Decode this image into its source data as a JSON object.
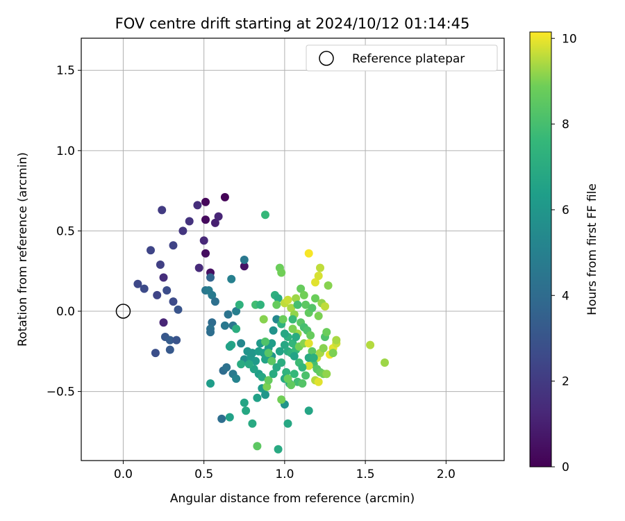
{
  "chart_data": {
    "type": "scatter",
    "title": "FOV centre drift starting at 2024/10/12 01:14:45",
    "xlabel": "Angular distance from reference (arcmin)",
    "ylabel": "Rotation from reference (arcmin)",
    "xlim": [
      -0.26,
      2.36
    ],
    "ylim": [
      -0.93,
      1.7
    ],
    "xticks": [
      0.0,
      0.5,
      1.0,
      1.5,
      2.0
    ],
    "xtick_labels": [
      "0.0",
      "0.5",
      "1.0",
      "1.5",
      "2.0"
    ],
    "yticks": [
      -0.5,
      0.0,
      0.5,
      1.0,
      1.5
    ],
    "ytick_labels": [
      "−0.5",
      "0.0",
      "0.5",
      "1.0",
      "1.5"
    ],
    "grid": true,
    "legend": {
      "placement": "top-right",
      "entries": [
        "Reference platepar"
      ]
    },
    "reference_point": {
      "x": 0.0,
      "y": 0.0,
      "label": "Reference platepar"
    },
    "colorbar": {
      "label": "Hours from first FF file",
      "range": [
        0,
        10.15
      ],
      "ticks": [
        0,
        2,
        4,
        6,
        8,
        10
      ],
      "tick_labels": [
        "0",
        "2",
        "4",
        "6",
        "8",
        "10"
      ],
      "colormap": "viridis"
    },
    "points": [
      [
        0.63,
        0.71,
        0.1
      ],
      [
        0.51,
        0.68,
        0.2
      ],
      [
        0.51,
        0.57,
        0.3
      ],
      [
        0.51,
        0.36,
        0.4
      ],
      [
        0.54,
        0.24,
        0.5
      ],
      [
        0.75,
        0.28,
        0.6
      ],
      [
        0.57,
        0.55,
        1.0
      ],
      [
        0.59,
        0.59,
        1.2
      ],
      [
        0.46,
        0.66,
        1.5
      ],
      [
        0.5,
        0.44,
        1.3
      ],
      [
        0.47,
        0.27,
        1.4
      ],
      [
        0.25,
        0.21,
        1.5
      ],
      [
        0.25,
        -0.07,
        1.2
      ],
      [
        0.24,
        0.63,
        2.0
      ],
      [
        0.41,
        0.56,
        1.7
      ],
      [
        0.37,
        0.5,
        1.8
      ],
      [
        0.31,
        0.41,
        2.3
      ],
      [
        0.17,
        0.38,
        2.4
      ],
      [
        0.23,
        0.29,
        2.2
      ],
      [
        0.09,
        0.17,
        2.5
      ],
      [
        0.13,
        0.14,
        2.6
      ],
      [
        0.21,
        0.1,
        2.4
      ],
      [
        0.27,
        0.13,
        2.7
      ],
      [
        0.31,
        0.06,
        2.6
      ],
      [
        0.34,
        0.01,
        3.0
      ],
      [
        0.26,
        -0.16,
        3.1
      ],
      [
        0.29,
        -0.18,
        3.3
      ],
      [
        0.33,
        -0.18,
        3.0
      ],
      [
        0.2,
        -0.26,
        2.8
      ],
      [
        0.29,
        -0.24,
        3.2
      ],
      [
        0.51,
        0.13,
        4.5
      ],
      [
        0.53,
        0.13,
        4.8
      ],
      [
        0.55,
        0.1,
        4.7
      ],
      [
        0.57,
        0.06,
        4.2
      ],
      [
        0.54,
        0.21,
        3.7
      ],
      [
        0.55,
        -0.07,
        4.0
      ],
      [
        0.54,
        -0.11,
        4.3
      ],
      [
        0.54,
        -0.13,
        4.1
      ],
      [
        0.63,
        -0.09,
        4.6
      ],
      [
        0.65,
        -0.02,
        4.4
      ],
      [
        0.68,
        -0.09,
        4.5
      ],
      [
        0.7,
        0.0,
        4.9
      ],
      [
        0.75,
        0.32,
        4.6
      ],
      [
        0.67,
        0.2,
        5.0
      ],
      [
        0.62,
        -0.37,
        4.0
      ],
      [
        0.64,
        -0.35,
        4.3
      ],
      [
        0.68,
        -0.39,
        4.7
      ],
      [
        0.7,
        -0.42,
        5.1
      ],
      [
        0.61,
        -0.67,
        4.1
      ],
      [
        0.66,
        -0.66,
        6.5
      ],
      [
        0.54,
        -0.45,
        6.3
      ],
      [
        0.67,
        -0.21,
        6.7
      ],
      [
        0.66,
        -0.22,
        6.5
      ],
      [
        0.73,
        -0.2,
        5.3
      ],
      [
        0.75,
        -0.3,
        5.6
      ],
      [
        0.77,
        -0.25,
        5.9
      ],
      [
        0.79,
        -0.29,
        6.1
      ],
      [
        0.8,
        -0.26,
        6.0
      ],
      [
        0.82,
        -0.31,
        6.2
      ],
      [
        0.84,
        -0.25,
        6.3
      ],
      [
        0.85,
        -0.2,
        6.1
      ],
      [
        0.87,
        -0.26,
        6.4
      ],
      [
        0.88,
        -0.3,
        6.6
      ],
      [
        0.9,
        -0.23,
        6.2
      ],
      [
        0.92,
        -0.28,
        6.0
      ],
      [
        0.75,
        -0.57,
        6.7
      ],
      [
        0.76,
        -0.62,
        6.8
      ],
      [
        0.8,
        -0.7,
        6.9
      ],
      [
        0.83,
        -0.54,
        6.5
      ],
      [
        0.86,
        -0.48,
        6.2
      ],
      [
        0.88,
        -0.52,
        6.0
      ],
      [
        0.84,
        -0.39,
        6.4
      ],
      [
        0.86,
        -0.41,
        6.8
      ],
      [
        0.81,
        -0.36,
        6.6
      ],
      [
        0.78,
        -0.33,
        6.9
      ],
      [
        0.73,
        -0.33,
        7.0
      ],
      [
        0.7,
        -0.11,
        7.1
      ],
      [
        0.72,
        0.04,
        7.3
      ],
      [
        0.88,
        0.6,
        7.6
      ],
      [
        0.82,
        0.04,
        7.9
      ],
      [
        0.85,
        0.04,
        7.4
      ],
      [
        0.96,
        -0.86,
        6.9
      ],
      [
        0.83,
        -0.84,
        8.5
      ],
      [
        1.02,
        -0.7,
        6.8
      ],
      [
        1.15,
        -0.62,
        6.7
      ],
      [
        0.94,
        0.1,
        7.2
      ],
      [
        0.96,
        0.08,
        6.9
      ],
      [
        0.95,
        -0.05,
        5.3
      ],
      [
        0.93,
        -0.12,
        5.8
      ],
      [
        0.92,
        -0.2,
        6.3
      ],
      [
        0.97,
        -0.25,
        6.6
      ],
      [
        1.0,
        -0.21,
        6.8
      ],
      [
        1.02,
        -0.25,
        7.0
      ],
      [
        1.04,
        -0.26,
        7.3
      ],
      [
        1.05,
        -0.2,
        7.5
      ],
      [
        1.07,
        -0.24,
        7.6
      ],
      [
        0.98,
        -0.32,
        7.1
      ],
      [
        1.01,
        -0.38,
        7.4
      ],
      [
        1.0,
        -0.42,
        6.9
      ],
      [
        1.03,
        -0.45,
        7.2
      ],
      [
        1.06,
        -0.39,
        7.6
      ],
      [
        1.08,
        -0.44,
        7.9
      ],
      [
        1.11,
        -0.45,
        8.3
      ],
      [
        1.13,
        -0.4,
        8.1
      ],
      [
        1.0,
        -0.58,
        5.9
      ],
      [
        0.98,
        -0.55,
        8.9
      ],
      [
        1.04,
        -0.46,
        8.6
      ],
      [
        1.02,
        -0.42,
        8.8
      ],
      [
        0.89,
        -0.47,
        9.0
      ],
      [
        0.9,
        -0.43,
        8.7
      ],
      [
        0.92,
        -0.31,
        8.5
      ],
      [
        0.88,
        -0.19,
        8.2
      ],
      [
        0.9,
        -0.26,
        8.4
      ],
      [
        0.87,
        -0.05,
        9.1
      ],
      [
        0.95,
        0.04,
        8.7
      ],
      [
        0.97,
        0.27,
        8.8
      ],
      [
        0.98,
        0.24,
        8.9
      ],
      [
        1.0,
        0.05,
        9.6
      ],
      [
        1.02,
        0.07,
        9.7
      ],
      [
        1.04,
        0.02,
        9.4
      ],
      [
        1.06,
        -0.02,
        9.2
      ],
      [
        1.07,
        0.08,
        9.3
      ],
      [
        1.1,
        0.14,
        8.7
      ],
      [
        1.12,
        0.1,
        8.9
      ],
      [
        1.13,
        0.04,
        8.5
      ],
      [
        1.15,
        -0.01,
        8.6
      ],
      [
        1.17,
        0.02,
        8.3
      ],
      [
        1.19,
        0.08,
        8.8
      ],
      [
        1.21,
        -0.03,
        9.0
      ],
      [
        1.1,
        -0.07,
        8.4
      ],
      [
        1.12,
        -0.1,
        8.0
      ],
      [
        1.14,
        -0.12,
        8.2
      ],
      [
        1.16,
        -0.15,
        8.7
      ],
      [
        1.08,
        -0.14,
        9.3
      ],
      [
        1.05,
        -0.11,
        9.0
      ],
      [
        1.09,
        -0.22,
        8.9
      ],
      [
        1.12,
        -0.2,
        9.1
      ],
      [
        1.15,
        -0.2,
        9.9
      ],
      [
        1.17,
        -0.25,
        8.5
      ],
      [
        1.2,
        -0.29,
        9.7
      ],
      [
        1.22,
        -0.26,
        9.4
      ],
      [
        1.24,
        -0.23,
        9.1
      ],
      [
        1.25,
        -0.16,
        8.2
      ],
      [
        1.26,
        -0.13,
        8.8
      ],
      [
        1.18,
        -0.33,
        8.0
      ],
      [
        1.2,
        -0.36,
        8.4
      ],
      [
        1.22,
        -0.38,
        8.6
      ],
      [
        1.24,
        -0.39,
        8.9
      ],
      [
        1.26,
        -0.39,
        9.2
      ],
      [
        1.15,
        -0.34,
        9.8
      ],
      [
        1.19,
        -0.43,
        9.5
      ],
      [
        1.21,
        -0.44,
        9.9
      ],
      [
        1.23,
        0.05,
        9.2
      ],
      [
        1.25,
        0.03,
        9.6
      ],
      [
        1.27,
        0.16,
        9.1
      ],
      [
        1.19,
        0.18,
        9.9
      ],
      [
        1.21,
        0.22,
        9.8
      ],
      [
        1.22,
        0.27,
        9.6
      ],
      [
        1.15,
        0.36,
        10.1
      ],
      [
        1.28,
        -0.27,
        10.0
      ],
      [
        1.3,
        -0.23,
        9.9
      ],
      [
        1.32,
        -0.2,
        9.7
      ],
      [
        1.32,
        -0.18,
        9.4
      ],
      [
        1.3,
        -0.26,
        9.0
      ],
      [
        1.53,
        -0.21,
        9.5
      ],
      [
        1.62,
        -0.32,
        9.3
      ],
      [
        1.08,
        0.04,
        8.0
      ],
      [
        1.05,
        -0.05,
        7.7
      ],
      [
        1.09,
        -0.32,
        7.8
      ],
      [
        1.11,
        -0.35,
        7.5
      ],
      [
        1.02,
        -0.16,
        7.2
      ],
      [
        0.98,
        -0.08,
        7.3
      ],
      [
        1.0,
        -0.14,
        6.8
      ],
      [
        0.95,
        -0.35,
        6.9
      ],
      [
        0.93,
        -0.39,
        7.0
      ],
      [
        1.06,
        -0.28,
        6.6
      ],
      [
        1.15,
        -0.29,
        6.9
      ],
      [
        1.18,
        -0.29,
        7.2
      ],
      [
        1.07,
        -0.16,
        7.0
      ],
      [
        0.99,
        -0.05,
        8.8
      ]
    ]
  }
}
